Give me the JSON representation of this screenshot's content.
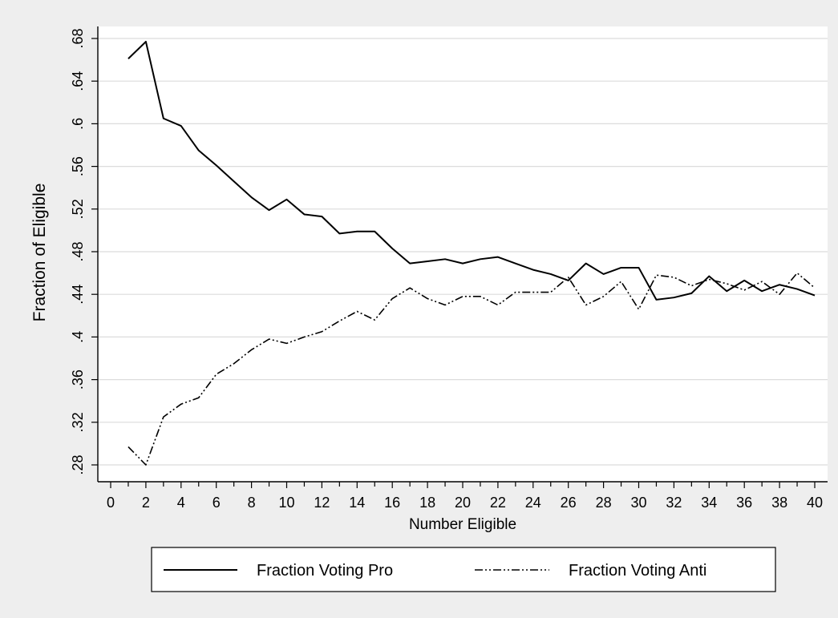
{
  "chart_data": {
    "type": "line",
    "title": "",
    "xlabel": "Number Eligible",
    "ylabel": "Fraction of Eligible",
    "xlim": [
      1,
      40
    ],
    "ylim": [
      0.28,
      0.68
    ],
    "xticks": [
      0,
      2,
      4,
      6,
      8,
      10,
      12,
      14,
      16,
      18,
      20,
      22,
      24,
      26,
      28,
      30,
      32,
      34,
      36,
      38,
      40
    ],
    "xtick_labels": [
      "0",
      "2",
      "4",
      "6",
      "8",
      "10",
      "12",
      "14",
      "16",
      "18",
      "20",
      "22",
      "24",
      "26",
      "28",
      "30",
      "32",
      "34",
      "36",
      "38",
      "40"
    ],
    "yticks": [
      0.28,
      0.32,
      0.36,
      0.4,
      0.44,
      0.48,
      0.52,
      0.56,
      0.6,
      0.64,
      0.68
    ],
    "ytick_labels": [
      ".28",
      ".32",
      ".36",
      ".4",
      ".44",
      ".48",
      ".52",
      ".56",
      ".6",
      ".64",
      ".68"
    ],
    "grid": true,
    "legend_position": "bottom",
    "x": [
      1,
      2,
      3,
      4,
      5,
      6,
      7,
      8,
      9,
      10,
      11,
      12,
      13,
      14,
      15,
      16,
      17,
      18,
      19,
      20,
      21,
      22,
      23,
      24,
      25,
      26,
      27,
      28,
      29,
      30,
      31,
      32,
      33,
      34,
      35,
      36,
      37,
      38,
      39,
      40
    ],
    "series": [
      {
        "name": "Fraction Voting Pro",
        "style": "solid",
        "values": [
          0.661,
          0.677,
          0.605,
          0.598,
          0.575,
          0.561,
          0.546,
          0.531,
          0.519,
          0.529,
          0.515,
          0.513,
          0.497,
          0.499,
          0.499,
          0.483,
          0.469,
          0.471,
          0.473,
          0.469,
          0.473,
          0.475,
          0.469,
          0.463,
          0.459,
          0.453,
          0.469,
          0.459,
          0.465,
          0.465,
          0.435,
          0.437,
          0.441,
          0.457,
          0.443,
          0.453,
          0.443,
          0.449,
          0.445,
          0.439
        ]
      },
      {
        "name": "Fraction Voting Anti",
        "style": "dash-dot",
        "values": [
          0.297,
          0.28,
          0.325,
          0.337,
          0.343,
          0.365,
          0.375,
          0.388,
          0.398,
          0.394,
          0.4,
          0.405,
          0.415,
          0.424,
          0.416,
          0.436,
          0.446,
          0.436,
          0.43,
          0.438,
          0.438,
          0.43,
          0.442,
          0.442,
          0.442,
          0.456,
          0.43,
          0.438,
          0.452,
          0.426,
          0.458,
          0.456,
          0.448,
          0.454,
          0.45,
          0.444,
          0.452,
          0.44,
          0.46,
          0.446
        ]
      }
    ],
    "colors": {
      "line": "#000000",
      "grid": "#dcdcdc",
      "plot_bg": "#ffffff",
      "page_bg": "#eeeeee"
    }
  }
}
